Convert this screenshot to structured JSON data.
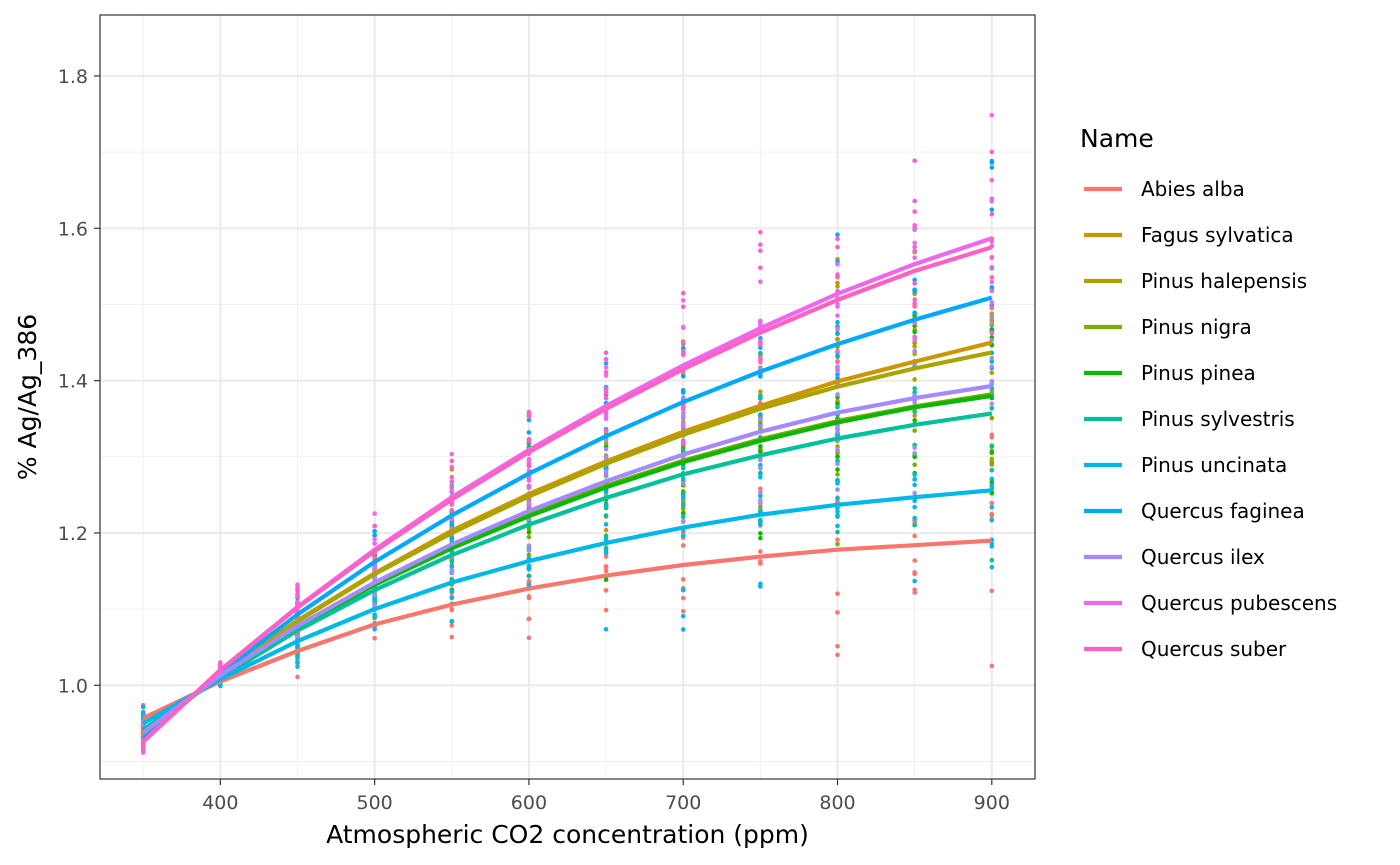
{
  "chart_data": {
    "type": "line",
    "title": "",
    "xlabel": "Atmospheric CO2 concentration (ppm)",
    "ylabel": "% Ag/Ag_386",
    "xlim": [
      322,
      928
    ],
    "ylim": [
      0.877,
      1.88
    ],
    "x_ticks": [
      400,
      500,
      600,
      700,
      800,
      900
    ],
    "y_ticks": [
      1.0,
      1.2,
      1.4,
      1.6,
      1.8
    ],
    "y_tick_labels": [
      "1.0",
      "1.2",
      "1.4",
      "1.6",
      "1.8"
    ],
    "grid": true,
    "legend_title": "Name",
    "legend_position": "right",
    "x": [
      350,
      400,
      450,
      500,
      550,
      600,
      650,
      700,
      750,
      800,
      850,
      900
    ],
    "series": [
      {
        "name": "Abies alba",
        "color": "#F8766D",
        "values": [
          0.957,
          1.005,
          1.045,
          1.08,
          1.106,
          1.127,
          1.144,
          1.158,
          1.169,
          1.178,
          1.184,
          1.19
        ]
      },
      {
        "name": "Fagus sylvatica",
        "color": "#CD9600",
        "values": [
          0.935,
          1.015,
          1.085,
          1.147,
          1.203,
          1.251,
          1.294,
          1.333,
          1.367,
          1.399,
          1.425,
          1.45
        ]
      },
      {
        "name": "Pinus halepensis",
        "color": "#ABA300",
        "values": [
          0.937,
          1.015,
          1.084,
          1.146,
          1.2,
          1.248,
          1.291,
          1.329,
          1.363,
          1.392,
          1.416,
          1.437
        ]
      },
      {
        "name": "Pinus nigra",
        "color": "#7CAE00",
        "values": [
          0.94,
          1.012,
          1.076,
          1.132,
          1.181,
          1.224,
          1.262,
          1.295,
          1.323,
          1.347,
          1.366,
          1.382
        ]
      },
      {
        "name": "Pinus pinea",
        "color": "#0CB702",
        "values": [
          0.94,
          1.012,
          1.076,
          1.132,
          1.18,
          1.222,
          1.26,
          1.293,
          1.321,
          1.345,
          1.365,
          1.38
        ]
      },
      {
        "name": "Pinus sylvestris",
        "color": "#00C19A",
        "values": [
          0.942,
          1.01,
          1.072,
          1.125,
          1.171,
          1.211,
          1.246,
          1.277,
          1.302,
          1.324,
          1.342,
          1.357
        ]
      },
      {
        "name": "Pinus uncinata",
        "color": "#00B8E7",
        "values": [
          0.95,
          1.008,
          1.058,
          1.1,
          1.135,
          1.163,
          1.187,
          1.207,
          1.224,
          1.237,
          1.247,
          1.256
        ]
      },
      {
        "name": "Quercus faginea",
        "color": "#00A9FF",
        "values": [
          0.93,
          1.016,
          1.093,
          1.162,
          1.223,
          1.278,
          1.327,
          1.372,
          1.412,
          1.448,
          1.48,
          1.509
        ]
      },
      {
        "name": "Quercus ilex",
        "color": "#A58AFF",
        "values": [
          0.938,
          1.013,
          1.078,
          1.135,
          1.185,
          1.229,
          1.268,
          1.303,
          1.333,
          1.358,
          1.377,
          1.393
        ]
      },
      {
        "name": "Quercus pubescens",
        "color": "#ED68ED",
        "values": [
          0.926,
          1.02,
          1.103,
          1.178,
          1.247,
          1.309,
          1.367,
          1.42,
          1.469,
          1.514,
          1.553,
          1.587
        ]
      },
      {
        "name": "Quercus suber",
        "color": "#FF61C3",
        "values": [
          0.926,
          1.02,
          1.102,
          1.176,
          1.244,
          1.306,
          1.363,
          1.415,
          1.463,
          1.506,
          1.544,
          1.575
        ]
      }
    ],
    "point_spread": [
      0.03,
      0.016,
      0.055,
      0.07,
      0.09,
      0.11,
      0.14,
      0.16,
      0.18,
      0.2,
      0.22,
      0.24
    ]
  }
}
